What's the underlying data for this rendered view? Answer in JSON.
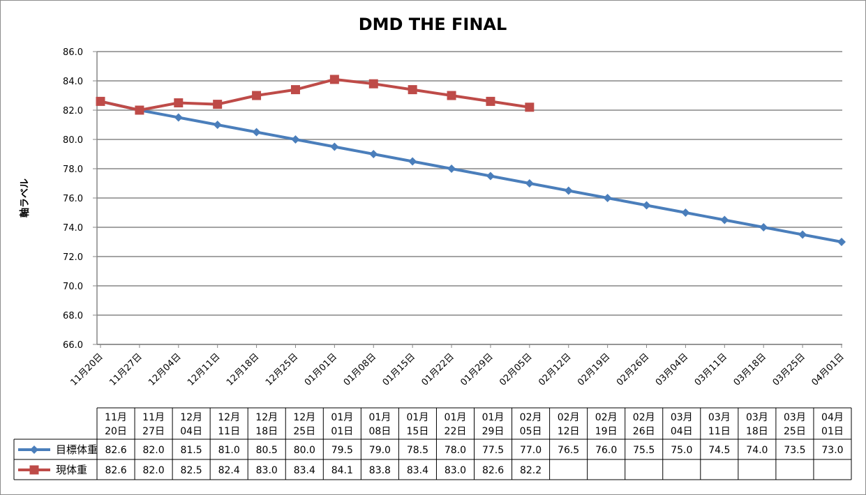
{
  "chart_data": {
    "type": "line",
    "title": "DMD THE FINAL",
    "ylabel": "軸ラベル",
    "xlabel": "",
    "ylim": [
      66.0,
      86.0
    ],
    "ystep": 2.0,
    "grid": true,
    "categories": [
      "11月20日",
      "11月27日",
      "12月04日",
      "12月11日",
      "12月18日",
      "12月25日",
      "01月01日",
      "01月08日",
      "01月15日",
      "01月22日",
      "01月29日",
      "02月05日",
      "02月12日",
      "02月19日",
      "02月26日",
      "03月04日",
      "03月11日",
      "03月18日",
      "03月25日",
      "04月01日"
    ],
    "table_categories": [
      [
        "11月",
        "20日"
      ],
      [
        "11月",
        "27日"
      ],
      [
        "12月",
        "04日"
      ],
      [
        "12月",
        "11日"
      ],
      [
        "12月",
        "18日"
      ],
      [
        "12月",
        "25日"
      ],
      [
        "01月",
        "01日"
      ],
      [
        "01月",
        "08日"
      ],
      [
        "01月",
        "15日"
      ],
      [
        "01月",
        "22日"
      ],
      [
        "01月",
        "29日"
      ],
      [
        "02月",
        "05日"
      ],
      [
        "02月",
        "12日"
      ],
      [
        "02月",
        "19日"
      ],
      [
        "02月",
        "26日"
      ],
      [
        "03月",
        "04日"
      ],
      [
        "03月",
        "11日"
      ],
      [
        "03月",
        "18日"
      ],
      [
        "03月",
        "25日"
      ],
      [
        "04月",
        "01日"
      ]
    ],
    "legend_placement": "data-table",
    "series": [
      {
        "name": "目標体重",
        "color": "#4a7ebb",
        "marker": "diamond",
        "values": [
          82.6,
          82.0,
          81.5,
          81.0,
          80.5,
          80.0,
          79.5,
          79.0,
          78.5,
          78.0,
          77.5,
          77.0,
          76.5,
          76.0,
          75.5,
          75.0,
          74.5,
          74.0,
          73.5,
          73.0
        ]
      },
      {
        "name": "現体重",
        "color": "#be4b48",
        "marker": "square",
        "values": [
          82.6,
          82.0,
          82.5,
          82.4,
          83.0,
          83.4,
          84.1,
          83.8,
          83.4,
          83.0,
          82.6,
          82.2,
          null,
          null,
          null,
          null,
          null,
          null,
          null,
          null
        ]
      }
    ]
  }
}
